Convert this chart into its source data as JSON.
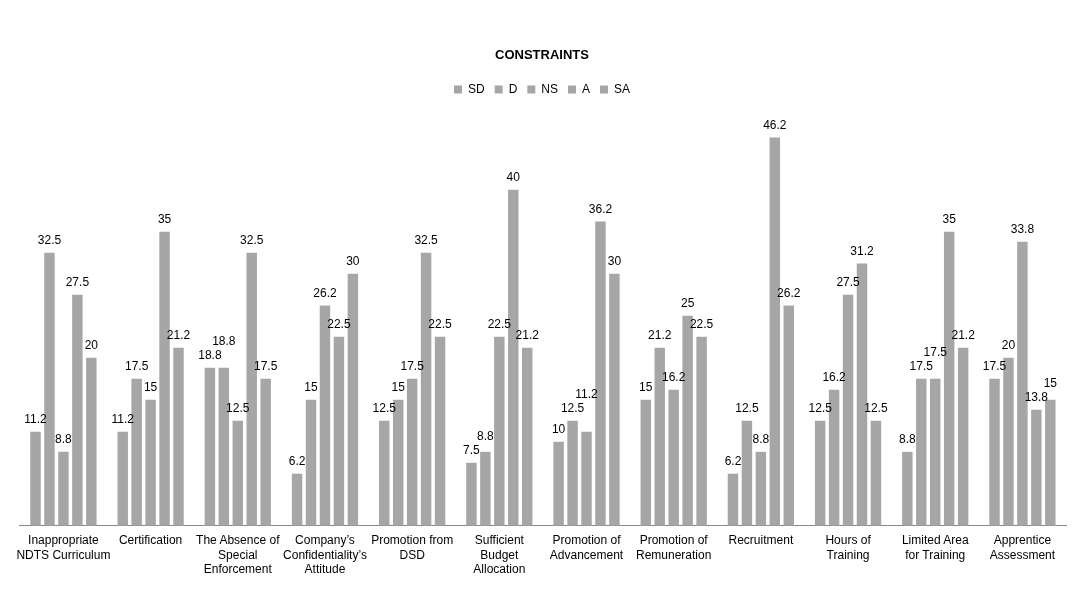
{
  "chart_data": {
    "type": "bar",
    "title": "CONSTRAINTS",
    "legend": "top",
    "data_labels": true,
    "grid": false,
    "categories": [
      "Inappropriate NDTS Curriculum",
      "Certification",
      "The Absence of Special Enforcement",
      "Company’s Confidentiality’s Attitude",
      "Promotion from DSD",
      "Sufficient Budget Allocation",
      "Promotion of Advancement",
      "Promotion of Remuneration",
      "Recruitment",
      "Hours of Training",
      "Limited Area for Training",
      "Apprentice Assessment"
    ],
    "series": [
      {
        "name": "SD",
        "color": "#a6a6a6",
        "values": [
          11.2,
          11.2,
          18.8,
          6.2,
          12.5,
          7.5,
          10,
          15,
          6.2,
          12.5,
          8.8,
          17.5
        ]
      },
      {
        "name": "D",
        "color": "#a6a6a6",
        "values": [
          32.5,
          17.5,
          18.8,
          15,
          15,
          8.8,
          12.5,
          21.2,
          12.5,
          16.2,
          17.5,
          20
        ]
      },
      {
        "name": "NS",
        "color": "#a6a6a6",
        "values": [
          8.8,
          15,
          12.5,
          26.2,
          17.5,
          22.5,
          11.2,
          16.2,
          8.8,
          27.5,
          17.5,
          33.8
        ]
      },
      {
        "name": "A",
        "color": "#a6a6a6",
        "values": [
          27.5,
          35,
          32.5,
          22.5,
          32.5,
          40,
          36.2,
          25,
          46.2,
          31.2,
          35,
          13.8
        ]
      },
      {
        "name": "SA",
        "color": "#a6a6a6",
        "values": [
          20,
          21.2,
          17.5,
          30,
          22.5,
          21.2,
          30,
          22.5,
          26.2,
          12.5,
          21.2,
          15
        ]
      }
    ]
  }
}
